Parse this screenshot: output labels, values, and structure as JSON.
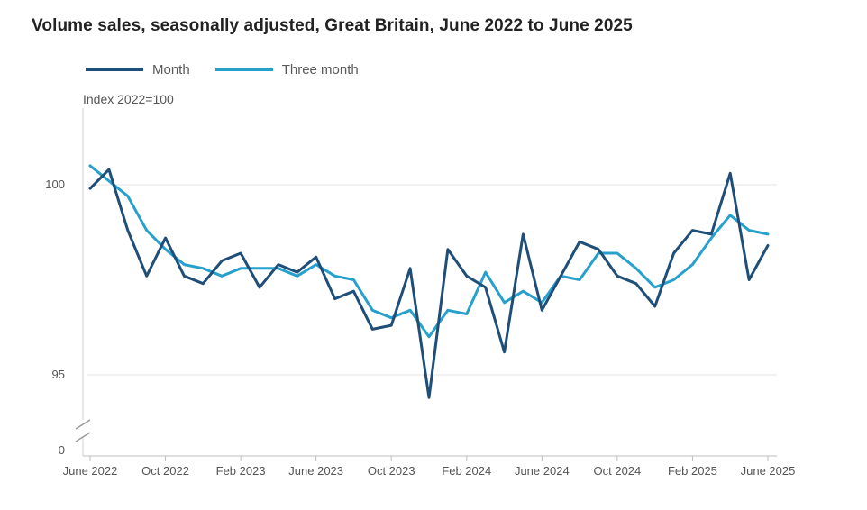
{
  "title": "Volume sales, seasonally adjusted, Great Britain, June 2022 to June 2025",
  "legend": [
    {
      "label": "Month",
      "color": "#1f4e79"
    },
    {
      "label": "Three month",
      "color": "#27a0cc"
    }
  ],
  "chart_data": {
    "type": "line",
    "title": "Volume sales, seasonally adjusted, Great Britain, June 2022 to June 2025",
    "ylabel": "Index 2022=100",
    "xlabel": "",
    "y_ticks": [
      0,
      95,
      100
    ],
    "y_axis_break": true,
    "ylim": [
      0,
      102.5
    ],
    "x_tick_labels": [
      "June 2022",
      "Oct 2022",
      "Feb 2023",
      "June 2023",
      "Oct 2023",
      "Feb 2024",
      "June 2024",
      "Oct 2024",
      "Feb 2025",
      "June 2025"
    ],
    "x_tick_indices": [
      0,
      4,
      8,
      12,
      16,
      20,
      24,
      28,
      32,
      36
    ],
    "grid": true,
    "legend_position": "top-left",
    "categories": [
      "Jun 2022",
      "Jul 2022",
      "Aug 2022",
      "Sep 2022",
      "Oct 2022",
      "Nov 2022",
      "Dec 2022",
      "Jan 2023",
      "Feb 2023",
      "Mar 2023",
      "Apr 2023",
      "May 2023",
      "Jun 2023",
      "Jul 2023",
      "Aug 2023",
      "Sep 2023",
      "Oct 2023",
      "Nov 2023",
      "Dec 2023",
      "Jan 2024",
      "Feb 2024",
      "Mar 2024",
      "Apr 2024",
      "May 2024",
      "Jun 2024",
      "Jul 2024",
      "Aug 2024",
      "Sep 2024",
      "Oct 2024",
      "Nov 2024",
      "Dec 2024",
      "Jan 2025",
      "Feb 2025",
      "Mar 2025",
      "Apr 2025",
      "May 2025",
      "Jun 2025"
    ],
    "series": [
      {
        "name": "Month",
        "color": "#1f4e79",
        "values": [
          99.9,
          100.4,
          98.8,
          97.6,
          98.6,
          97.6,
          97.4,
          98.0,
          98.2,
          97.3,
          97.9,
          97.7,
          98.1,
          97.0,
          97.2,
          96.2,
          96.3,
          97.8,
          94.4,
          98.3,
          97.6,
          97.3,
          95.6,
          98.7,
          96.7,
          97.6,
          98.5,
          98.3,
          97.6,
          97.4,
          96.8,
          98.2,
          98.8,
          98.7,
          100.3,
          97.5,
          98.4
        ]
      },
      {
        "name": "Three month",
        "color": "#27a0cc",
        "values": [
          100.5,
          100.1,
          99.7,
          98.8,
          98.3,
          97.9,
          97.8,
          97.6,
          97.8,
          97.8,
          97.8,
          97.6,
          97.9,
          97.6,
          97.5,
          96.7,
          96.5,
          96.7,
          96.0,
          96.7,
          96.6,
          97.7,
          96.9,
          97.2,
          96.9,
          97.6,
          97.5,
          98.2,
          98.2,
          97.8,
          97.3,
          97.5,
          97.9,
          98.6,
          99.2,
          98.8,
          98.7
        ]
      }
    ]
  }
}
